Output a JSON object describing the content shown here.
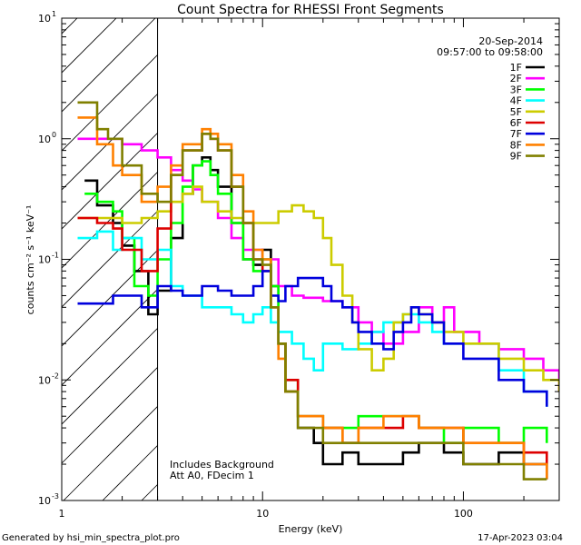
{
  "chart_data": {
    "type": "line",
    "title": "Count Spectra for RHESSI Front Segments",
    "xlabel": "Energy (keV)",
    "ylabel": "counts cm⁻² s⁻¹ keV⁻¹",
    "xscale": "log",
    "yscale": "log",
    "xlim": [
      1.0,
      300.0
    ],
    "ylim": [
      0.001,
      10.0
    ],
    "x_tick_labels": [
      {
        "value": 1,
        "label": "1"
      },
      {
        "value": 10,
        "label": "10"
      },
      {
        "value": 100,
        "label": "100"
      }
    ],
    "y_tick_labels": [
      {
        "value": 0.001,
        "base": "10",
        "exp": "-3"
      },
      {
        "value": 0.01,
        "base": "10",
        "exp": "-2"
      },
      {
        "value": 0.1,
        "base": "10",
        "exp": "-1"
      },
      {
        "value": 1,
        "base": "10",
        "exp": "0"
      },
      {
        "value": 10,
        "base": "10",
        "exp": "1"
      }
    ],
    "date_label": "20-Sep-2014",
    "time_range_label": "09:57:00 to 09:58:00",
    "annotations": [
      "Includes Background",
      "Att A0, FDecim 1"
    ],
    "excluded_region": {
      "xmin": 1.0,
      "xmax": 3.0,
      "style": "hatched"
    },
    "series": [
      {
        "name": "1F",
        "color": "#000000",
        "points": [
          [
            1.3,
            0.45
          ],
          [
            1.5,
            0.28
          ],
          [
            1.8,
            0.2
          ],
          [
            2.0,
            0.13
          ],
          [
            2.3,
            0.08
          ],
          [
            2.7,
            0.035
          ],
          [
            3.0,
            0.055
          ],
          [
            3.5,
            0.15
          ],
          [
            4.0,
            0.35
          ],
          [
            4.5,
            0.6
          ],
          [
            5.0,
            0.7
          ],
          [
            5.5,
            0.55
          ],
          [
            6.0,
            0.4
          ],
          [
            7.0,
            0.2
          ],
          [
            8.0,
            0.1
          ],
          [
            9.0,
            0.09
          ],
          [
            10.0,
            0.12
          ],
          [
            11.0,
            0.06
          ],
          [
            12.0,
            0.02
          ],
          [
            13.0,
            0.008
          ],
          [
            15.0,
            0.004
          ],
          [
            18.0,
            0.003
          ],
          [
            20.0,
            0.002
          ],
          [
            25.0,
            0.0025
          ],
          [
            30.0,
            0.002
          ],
          [
            40.0,
            0.002
          ],
          [
            50.0,
            0.0025
          ],
          [
            60.0,
            0.003
          ],
          [
            80.0,
            0.0025
          ],
          [
            100.0,
            0.002
          ],
          [
            150.0,
            0.0025
          ],
          [
            200.0,
            0.002
          ],
          [
            260.0,
            0.0015
          ]
        ]
      },
      {
        "name": "2F",
        "color": "#ff00ff",
        "points": [
          [
            1.2,
            1.0
          ],
          [
            1.5,
            1.0
          ],
          [
            2.0,
            0.9
          ],
          [
            2.5,
            0.8
          ],
          [
            3.0,
            0.7
          ],
          [
            3.5,
            0.55
          ],
          [
            4.0,
            0.45
          ],
          [
            4.5,
            0.38
          ],
          [
            5.0,
            0.3
          ],
          [
            6.0,
            0.22
          ],
          [
            7.0,
            0.15
          ],
          [
            8.0,
            0.12
          ],
          [
            10.0,
            0.1
          ],
          [
            12.0,
            0.06
          ],
          [
            14.0,
            0.05
          ],
          [
            16.0,
            0.048
          ],
          [
            20.0,
            0.045
          ],
          [
            25.0,
            0.04
          ],
          [
            30.0,
            0.03
          ],
          [
            35.0,
            0.025
          ],
          [
            40.0,
            0.02
          ],
          [
            50.0,
            0.025
          ],
          [
            60.0,
            0.04
          ],
          [
            70.0,
            0.03
          ],
          [
            80.0,
            0.04
          ],
          [
            90.0,
            0.025
          ],
          [
            100.0,
            0.025
          ],
          [
            120.0,
            0.02
          ],
          [
            150.0,
            0.018
          ],
          [
            200.0,
            0.015
          ],
          [
            250.0,
            0.012
          ],
          [
            300.0,
            0.008
          ]
        ]
      },
      {
        "name": "3F",
        "color": "#00ff00",
        "points": [
          [
            1.3,
            0.35
          ],
          [
            1.5,
            0.3
          ],
          [
            1.8,
            0.25
          ],
          [
            2.0,
            0.15
          ],
          [
            2.3,
            0.06
          ],
          [
            2.7,
            0.05
          ],
          [
            3.0,
            0.1
          ],
          [
            3.5,
            0.2
          ],
          [
            4.0,
            0.4
          ],
          [
            4.5,
            0.6
          ],
          [
            5.0,
            0.65
          ],
          [
            5.5,
            0.5
          ],
          [
            6.0,
            0.35
          ],
          [
            7.0,
            0.2
          ],
          [
            8.0,
            0.1
          ],
          [
            9.0,
            0.08
          ],
          [
            10.0,
            0.1
          ],
          [
            11.0,
            0.06
          ],
          [
            12.0,
            0.02
          ],
          [
            13.0,
            0.01
          ],
          [
            15.0,
            0.005
          ],
          [
            20.0,
            0.004
          ],
          [
            25.0,
            0.004
          ],
          [
            30.0,
            0.005
          ],
          [
            40.0,
            0.005
          ],
          [
            50.0,
            0.005
          ],
          [
            60.0,
            0.004
          ],
          [
            80.0,
            0.003
          ],
          [
            100.0,
            0.004
          ],
          [
            150.0,
            0.003
          ],
          [
            200.0,
            0.004
          ],
          [
            260.0,
            0.003
          ]
        ]
      },
      {
        "name": "4F",
        "color": "#00ffff",
        "points": [
          [
            1.2,
            0.15
          ],
          [
            1.5,
            0.17
          ],
          [
            1.8,
            0.12
          ],
          [
            2.0,
            0.15
          ],
          [
            2.5,
            0.1
          ],
          [
            3.0,
            0.12
          ],
          [
            3.5,
            0.06
          ],
          [
            4.0,
            0.05
          ],
          [
            5.0,
            0.04
          ],
          [
            6.0,
            0.04
          ],
          [
            7.0,
            0.035
          ],
          [
            8.0,
            0.03
          ],
          [
            9.0,
            0.035
          ],
          [
            10.0,
            0.04
          ],
          [
            11.0,
            0.03
          ],
          [
            12.0,
            0.025
          ],
          [
            14.0,
            0.02
          ],
          [
            16.0,
            0.015
          ],
          [
            18.0,
            0.012
          ],
          [
            20.0,
            0.02
          ],
          [
            25.0,
            0.018
          ],
          [
            30.0,
            0.02
          ],
          [
            35.0,
            0.025
          ],
          [
            40.0,
            0.03
          ],
          [
            50.0,
            0.035
          ],
          [
            60.0,
            0.03
          ],
          [
            70.0,
            0.025
          ],
          [
            80.0,
            0.02
          ],
          [
            100.0,
            0.02
          ],
          [
            150.0,
            0.012
          ],
          [
            200.0,
            0.008
          ],
          [
            260.0,
            0.006
          ]
        ]
      },
      {
        "name": "5F",
        "color": "#cccc00",
        "points": [
          [
            1.2,
            0.22
          ],
          [
            1.5,
            0.22
          ],
          [
            2.0,
            0.2
          ],
          [
            2.5,
            0.22
          ],
          [
            3.0,
            0.25
          ],
          [
            3.5,
            0.3
          ],
          [
            4.0,
            0.35
          ],
          [
            4.5,
            0.4
          ],
          [
            5.0,
            0.3
          ],
          [
            6.0,
            0.25
          ],
          [
            7.0,
            0.22
          ],
          [
            8.0,
            0.2
          ],
          [
            9.0,
            0.2
          ],
          [
            10.0,
            0.2
          ],
          [
            12.0,
            0.25
          ],
          [
            14.0,
            0.28
          ],
          [
            16.0,
            0.25
          ],
          [
            18.0,
            0.22
          ],
          [
            20.0,
            0.15
          ],
          [
            22.0,
            0.09
          ],
          [
            25.0,
            0.05
          ],
          [
            28.0,
            0.03
          ],
          [
            30.0,
            0.018
          ],
          [
            35.0,
            0.012
          ],
          [
            40.0,
            0.015
          ],
          [
            45.0,
            0.03
          ],
          [
            50.0,
            0.035
          ],
          [
            55.0,
            0.04
          ],
          [
            60.0,
            0.035
          ],
          [
            70.0,
            0.03
          ],
          [
            80.0,
            0.025
          ],
          [
            100.0,
            0.02
          ],
          [
            150.0,
            0.015
          ],
          [
            200.0,
            0.012
          ],
          [
            250.0,
            0.01
          ],
          [
            300.0,
            0.008
          ]
        ]
      },
      {
        "name": "6F",
        "color": "#dd0000",
        "points": [
          [
            1.2,
            0.22
          ],
          [
            1.5,
            0.2
          ],
          [
            1.8,
            0.18
          ],
          [
            2.0,
            0.12
          ],
          [
            2.5,
            0.08
          ],
          [
            3.0,
            0.18
          ],
          [
            3.5,
            0.5
          ],
          [
            4.0,
            0.8
          ],
          [
            5.0,
            1.1
          ],
          [
            5.5,
            1.0
          ],
          [
            6.0,
            0.8
          ],
          [
            7.0,
            0.4
          ],
          [
            8.0,
            0.2
          ],
          [
            9.0,
            0.1
          ],
          [
            10.0,
            0.08
          ],
          [
            11.0,
            0.04
          ],
          [
            12.0,
            0.02
          ],
          [
            13.0,
            0.01
          ],
          [
            15.0,
            0.005
          ],
          [
            20.0,
            0.004
          ],
          [
            25.0,
            0.003
          ],
          [
            30.0,
            0.004
          ],
          [
            40.0,
            0.004
          ],
          [
            50.0,
            0.005
          ],
          [
            60.0,
            0.004
          ],
          [
            80.0,
            0.004
          ],
          [
            100.0,
            0.003
          ],
          [
            150.0,
            0.003
          ],
          [
            200.0,
            0.0025
          ],
          [
            260.0,
            0.002
          ]
        ]
      },
      {
        "name": "7F",
        "color": "#0000dd",
        "points": [
          [
            1.2,
            0.043
          ],
          [
            1.5,
            0.043
          ],
          [
            1.8,
            0.05
          ],
          [
            2.0,
            0.05
          ],
          [
            2.5,
            0.04
          ],
          [
            3.0,
            0.06
          ],
          [
            3.5,
            0.055
          ],
          [
            4.0,
            0.05
          ],
          [
            5.0,
            0.06
          ],
          [
            6.0,
            0.055
          ],
          [
            7.0,
            0.05
          ],
          [
            8.0,
            0.05
          ],
          [
            9.0,
            0.06
          ],
          [
            10.0,
            0.08
          ],
          [
            11.0,
            0.05
          ],
          [
            12.0,
            0.045
          ],
          [
            13.0,
            0.06
          ],
          [
            15.0,
            0.07
          ],
          [
            18.0,
            0.07
          ],
          [
            20.0,
            0.06
          ],
          [
            22.0,
            0.045
          ],
          [
            25.0,
            0.04
          ],
          [
            28.0,
            0.03
          ],
          [
            30.0,
            0.025
          ],
          [
            35.0,
            0.02
          ],
          [
            40.0,
            0.018
          ],
          [
            45.0,
            0.025
          ],
          [
            50.0,
            0.03
          ],
          [
            55.0,
            0.04
          ],
          [
            60.0,
            0.035
          ],
          [
            70.0,
            0.03
          ],
          [
            80.0,
            0.02
          ],
          [
            100.0,
            0.015
          ],
          [
            150.0,
            0.01
          ],
          [
            200.0,
            0.008
          ],
          [
            260.0,
            0.006
          ]
        ]
      },
      {
        "name": "8F",
        "color": "#ff8000",
        "points": [
          [
            1.2,
            1.5
          ],
          [
            1.5,
            0.9
          ],
          [
            1.8,
            0.6
          ],
          [
            2.0,
            0.5
          ],
          [
            2.5,
            0.3
          ],
          [
            3.0,
            0.4
          ],
          [
            3.5,
            0.6
          ],
          [
            4.0,
            0.9
          ],
          [
            5.0,
            1.2
          ],
          [
            5.5,
            1.1
          ],
          [
            6.0,
            0.9
          ],
          [
            7.0,
            0.5
          ],
          [
            8.0,
            0.25
          ],
          [
            9.0,
            0.12
          ],
          [
            10.0,
            0.1
          ],
          [
            11.0,
            0.04
          ],
          [
            12.0,
            0.015
          ],
          [
            13.0,
            0.008
          ],
          [
            15.0,
            0.005
          ],
          [
            20.0,
            0.004
          ],
          [
            25.0,
            0.003
          ],
          [
            30.0,
            0.004
          ],
          [
            40.0,
            0.005
          ],
          [
            50.0,
            0.005
          ],
          [
            60.0,
            0.004
          ],
          [
            80.0,
            0.004
          ],
          [
            100.0,
            0.003
          ],
          [
            150.0,
            0.003
          ],
          [
            200.0,
            0.002
          ],
          [
            260.0,
            0.0015
          ]
        ]
      },
      {
        "name": "9F",
        "color": "#808000",
        "points": [
          [
            1.2,
            2.0
          ],
          [
            1.4,
            2.0
          ],
          [
            1.5,
            1.2
          ],
          [
            1.7,
            1.0
          ],
          [
            2.0,
            0.6
          ],
          [
            2.5,
            0.35
          ],
          [
            3.0,
            0.3
          ],
          [
            3.5,
            0.5
          ],
          [
            4.0,
            0.8
          ],
          [
            5.0,
            1.1
          ],
          [
            5.5,
            1.0
          ],
          [
            6.0,
            0.8
          ],
          [
            7.0,
            0.4
          ],
          [
            8.0,
            0.2
          ],
          [
            9.0,
            0.1
          ],
          [
            10.0,
            0.09
          ],
          [
            11.0,
            0.04
          ],
          [
            12.0,
            0.02
          ],
          [
            13.0,
            0.008
          ],
          [
            15.0,
            0.004
          ],
          [
            20.0,
            0.003
          ],
          [
            25.0,
            0.003
          ],
          [
            30.0,
            0.003
          ],
          [
            40.0,
            0.003
          ],
          [
            50.0,
            0.003
          ],
          [
            60.0,
            0.003
          ],
          [
            80.0,
            0.003
          ],
          [
            100.0,
            0.002
          ],
          [
            150.0,
            0.002
          ],
          [
            200.0,
            0.0015
          ],
          [
            260.0,
            0.0015
          ]
        ]
      }
    ]
  },
  "footer": {
    "generated_by": "Generated by hsi_min_spectra_plot.pro",
    "timestamp": "17-Apr-2023 03:04"
  }
}
